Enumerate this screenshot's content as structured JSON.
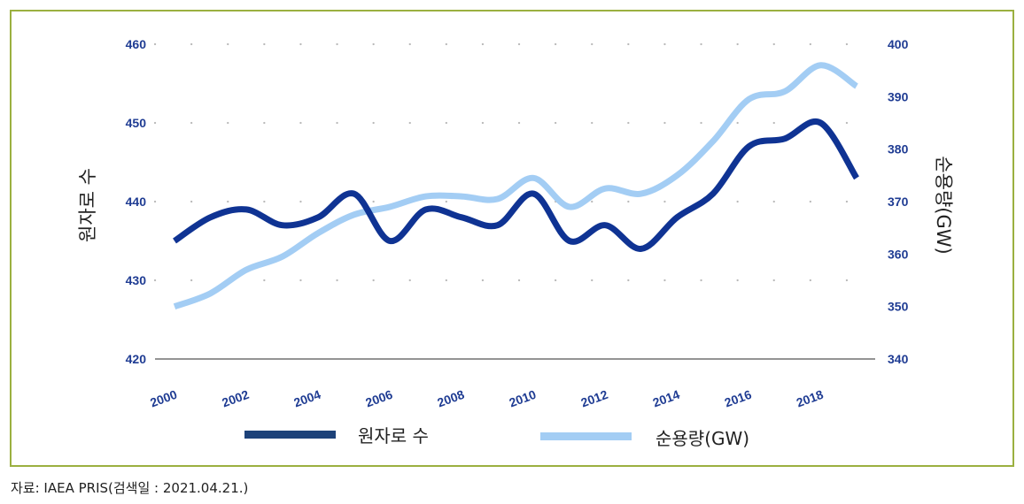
{
  "source_note": "자료: IAEA PRIS(검색일 : 2021.04.21.)",
  "colors": {
    "series_reactors": "#0f3393",
    "series_capacity": "#a3cdf4",
    "legend_reactors": "#1d4279",
    "legend_capacity": "#a3cdf4",
    "axis_text": "#1f3c93",
    "frame": "#9bb040"
  },
  "chart_data": {
    "type": "line",
    "x": [
      2000,
      2001,
      2002,
      2003,
      2004,
      2005,
      2006,
      2007,
      2008,
      2009,
      2010,
      2011,
      2012,
      2013,
      2014,
      2015,
      2016,
      2017,
      2018,
      2019
    ],
    "x_tick_labels": [
      "2000",
      "2002",
      "2004",
      "2006",
      "2008",
      "2010",
      "2012",
      "2014",
      "2016",
      "2018"
    ],
    "y_left": {
      "label": "원자로 수",
      "lim": [
        420,
        460
      ],
      "ticks": [
        "460",
        "450",
        "440",
        "430",
        "420"
      ]
    },
    "y_right": {
      "label": "순용량(GW)",
      "lim": [
        340,
        400
      ],
      "ticks": [
        "400",
        "390",
        "380",
        "370",
        "360",
        "350",
        "340"
      ]
    },
    "grid": "dotted horizontal",
    "legend_position": "bottom",
    "series": [
      {
        "name": "원자로 수",
        "axis": "left",
        "values": [
          435,
          438,
          439,
          437,
          438,
          441,
          435,
          439,
          438,
          437,
          441,
          435,
          437,
          434,
          438,
          441,
          447,
          448,
          450,
          443
        ]
      },
      {
        "name": "순용량(GW)",
        "axis": "right",
        "values": [
          350,
          352.5,
          357,
          359.5,
          364,
          367.5,
          369,
          371,
          371,
          370.5,
          374.5,
          369,
          372.5,
          371.5,
          375,
          381.5,
          389.5,
          391,
          396,
          392
        ]
      }
    ]
  }
}
